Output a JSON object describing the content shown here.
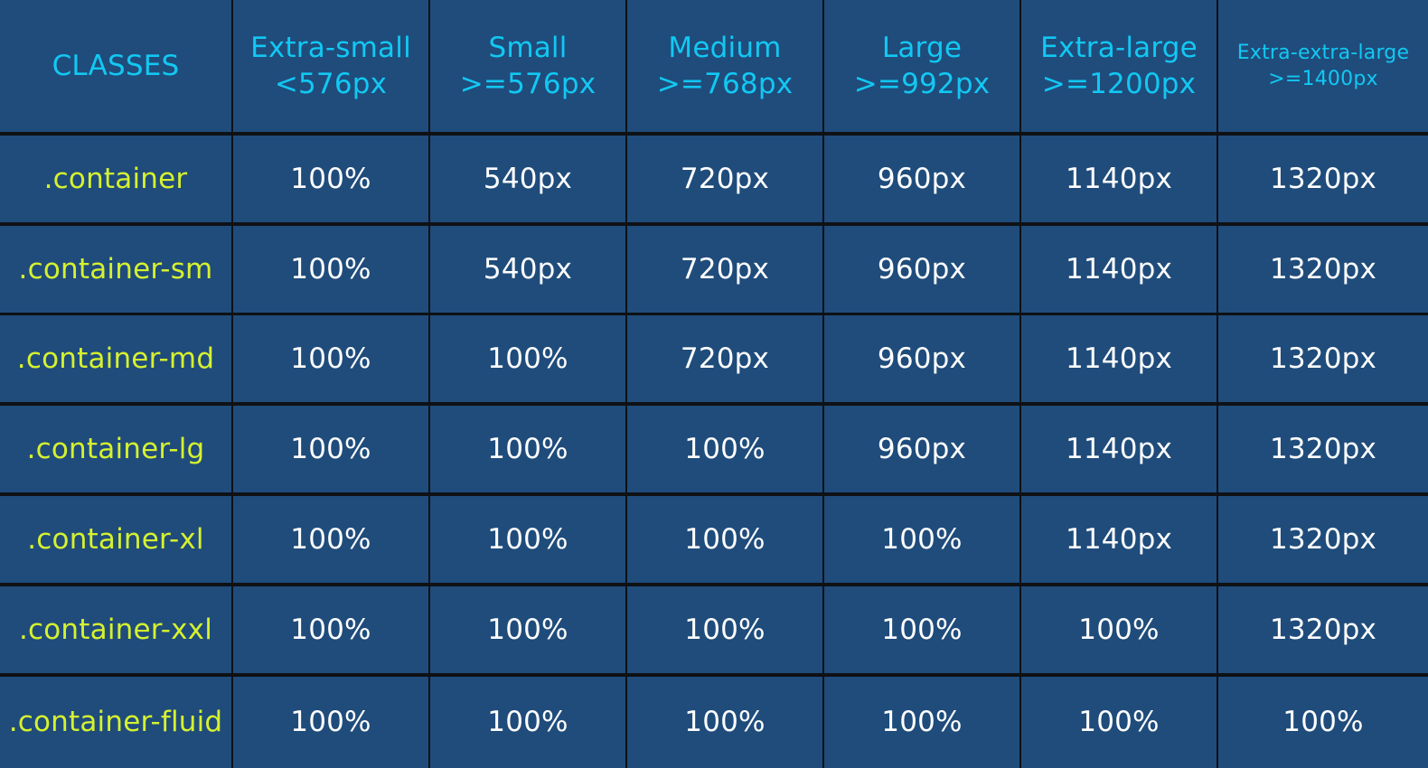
{
  "table": {
    "headers": [
      {
        "line1": "CLASSES",
        "line2": ""
      },
      {
        "line1": "Extra-small",
        "line2": "<576px"
      },
      {
        "line1": "Small",
        "line2": ">=576px"
      },
      {
        "line1": "Medium",
        "line2": ">=768px"
      },
      {
        "line1": "Large",
        "line2": ">=992px"
      },
      {
        "line1": "Extra-large",
        "line2": ">=1200px"
      },
      {
        "line1": "Extra-extra-large",
        "line2": ">=1400px"
      }
    ],
    "rows": [
      {
        "class": ".container",
        "values": [
          "100%",
          "540px",
          "720px",
          "960px",
          "1140px",
          "1320px"
        ]
      },
      {
        "class": ".container-sm",
        "values": [
          "100%",
          "540px",
          "720px",
          "960px",
          "1140px",
          "1320px"
        ]
      },
      {
        "class": ".container-md",
        "values": [
          "100%",
          "100%",
          "720px",
          "960px",
          "1140px",
          "1320px"
        ]
      },
      {
        "class": ".container-lg",
        "values": [
          "100%",
          "100%",
          "100%",
          "960px",
          "1140px",
          "1320px"
        ]
      },
      {
        "class": ".container-xl",
        "values": [
          "100%",
          "100%",
          "100%",
          "100%",
          "1140px",
          "1320px"
        ]
      },
      {
        "class": ".container-xxl",
        "values": [
          "100%",
          "100%",
          "100%",
          "100%",
          "100%",
          "1320px"
        ]
      },
      {
        "class": ".container-fluid",
        "values": [
          "100%",
          "100%",
          "100%",
          "100%",
          "100%",
          "100%"
        ]
      }
    ]
  },
  "colors": {
    "cell_background": "#1f4c7b",
    "grid_lines": "#0f1115",
    "header_text": "#12c8f3",
    "class_text": "#d6f12f",
    "value_text": "#ffffff"
  }
}
